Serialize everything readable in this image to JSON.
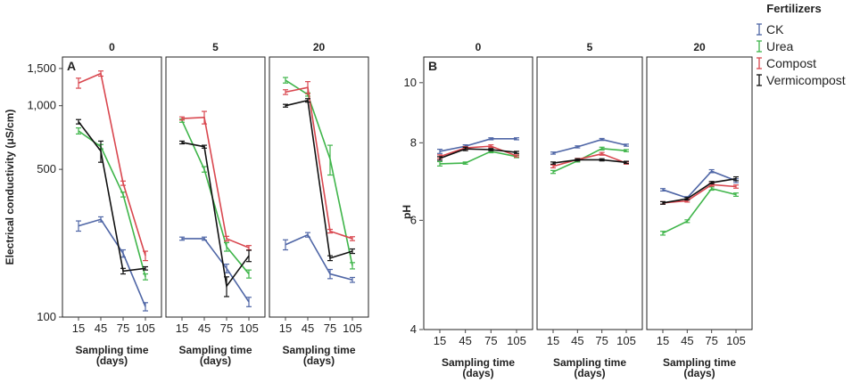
{
  "chart_data": [
    {
      "type": "line",
      "panel_label": "A",
      "ylabel": "Electrical conductivity (μS/cm)",
      "xlabel_line1": "Sampling time",
      "xlabel_line2": "(days)",
      "yscale": "log",
      "ylim": [
        100,
        1700
      ],
      "yticks": [
        100,
        500,
        1000,
        1500
      ],
      "ytick_labels": [
        "100",
        "500",
        "1,000",
        "1,500"
      ],
      "x": [
        15,
        45,
        75,
        105
      ],
      "xtick_labels": [
        "15",
        "45",
        "75",
        "105"
      ],
      "facets": [
        {
          "label": "0",
          "series": [
            {
              "name": "CK",
              "values": [
                270,
                290,
                200,
                112
              ],
              "errors": [
                15,
                8,
                8,
                5
              ]
            },
            {
              "name": "Urea",
              "values": [
                760,
                640,
                380,
                155
              ],
              "errors": [
                25,
                15,
                10,
                5
              ]
            },
            {
              "name": "Compost",
              "values": [
                1280,
                1420,
                430,
                195
              ],
              "errors": [
                70,
                40,
                10,
                10
              ]
            },
            {
              "name": "Vermicompost",
              "values": [
                840,
                610,
                165,
                170
              ],
              "errors": [
                20,
                70,
                5,
                3
              ]
            }
          ]
        },
        {
          "label": "5",
          "series": [
            {
              "name": "CK",
              "values": [
                235,
                235,
                170,
                118
              ],
              "errors": [
                4,
                4,
                8,
                6
              ]
            },
            {
              "name": "Urea",
              "values": [
                850,
                500,
                215,
                160
              ],
              "errors": [
                15,
                15,
                10,
                7
              ]
            },
            {
              "name": "Compost",
              "values": [
                870,
                880,
                235,
                213
              ],
              "errors": [
                15,
                60,
                6,
                5
              ]
            },
            {
              "name": "Vermicompost",
              "values": [
                670,
                640,
                140,
                195
              ],
              "errors": [
                10,
                10,
                15,
                12
              ]
            }
          ]
        },
        {
          "label": "20",
          "series": [
            {
              "name": "CK",
              "values": [
                220,
                245,
                160,
                150
              ],
              "errors": [
                12,
                6,
                8,
                4
              ]
            },
            {
              "name": "Urea",
              "values": [
                1320,
                1130,
                560,
                175
              ],
              "errors": [
                40,
                20,
                90,
                6
              ]
            },
            {
              "name": "Compost",
              "values": [
                1160,
                1220,
                255,
                235
              ],
              "errors": [
                30,
                80,
                5,
                5
              ]
            },
            {
              "name": "Vermicompost",
              "values": [
                1000,
                1060,
                190,
                205
              ],
              "errors": [
                15,
                20,
                5,
                5
              ]
            }
          ]
        }
      ]
    },
    {
      "type": "line",
      "panel_label": "B",
      "ylabel": "pH",
      "xlabel_line1": "Sampling time",
      "xlabel_line2": "(days)",
      "yscale": "log",
      "ylim": [
        4,
        11
      ],
      "yticks": [
        4,
        6,
        8,
        10
      ],
      "ytick_labels": [
        "4",
        "6",
        "8",
        "10"
      ],
      "x": [
        15,
        45,
        75,
        105
      ],
      "xtick_labels": [
        "15",
        "45",
        "75",
        "105"
      ],
      "facets": [
        {
          "label": "0",
          "series": [
            {
              "name": "CK",
              "values": [
                7.75,
                7.9,
                8.12,
                8.12
              ],
              "errors": [
                0.06,
                0.04,
                0.03,
                0.03
              ]
            },
            {
              "name": "Urea",
              "values": [
                7.4,
                7.42,
                7.75,
                7.6
              ],
              "errors": [
                0.06,
                0.03,
                0.04,
                0.03
              ]
            },
            {
              "name": "Compost",
              "values": [
                7.6,
                7.85,
                7.9,
                7.62
              ],
              "errors": [
                0.05,
                0.04,
                0.04,
                0.03
              ]
            },
            {
              "name": "Vermicompost",
              "values": [
                7.55,
                7.82,
                7.8,
                7.72
              ],
              "errors": [
                0.05,
                0.05,
                0.03,
                0.03
              ]
            }
          ]
        },
        {
          "label": "5",
          "series": [
            {
              "name": "CK",
              "values": [
                7.7,
                7.88,
                8.1,
                7.93
              ],
              "errors": [
                0.03,
                0.03,
                0.03,
                0.03
              ]
            },
            {
              "name": "Urea",
              "values": [
                7.18,
                7.48,
                7.83,
                7.77
              ],
              "errors": [
                0.04,
                0.03,
                0.04,
                0.03
              ]
            },
            {
              "name": "Compost",
              "values": [
                7.33,
                7.52,
                7.68,
                7.42
              ],
              "errors": [
                0.04,
                0.03,
                0.04,
                0.03
              ]
            },
            {
              "name": "Vermicompost",
              "values": [
                7.42,
                7.51,
                7.51,
                7.44
              ],
              "errors": [
                0.03,
                0.03,
                0.03,
                0.03
              ]
            }
          ]
        },
        {
          "label": "20",
          "series": [
            {
              "name": "CK",
              "values": [
                6.72,
                6.52,
                7.2,
                6.95
              ],
              "errors": [
                0.03,
                0.03,
                0.04,
                0.05
              ]
            },
            {
              "name": "Urea",
              "values": [
                5.72,
                5.98,
                6.75,
                6.6
              ],
              "errors": [
                0.04,
                0.03,
                0.04,
                0.04
              ]
            },
            {
              "name": "Compost",
              "values": [
                6.4,
                6.45,
                6.85,
                6.8
              ],
              "errors": [
                0.03,
                0.03,
                0.04,
                0.04
              ]
            },
            {
              "name": "Vermicompost",
              "values": [
                6.4,
                6.5,
                6.9,
                7.0
              ],
              "errors": [
                0.03,
                0.03,
                0.03,
                0.05
              ]
            }
          ]
        }
      ]
    }
  ],
  "legend": {
    "title": "Fertilizers",
    "items": [
      {
        "name": "CK",
        "color": "#4f66a6"
      },
      {
        "name": "Urea",
        "color": "#3fb54a"
      },
      {
        "name": "Compost",
        "color": "#d9474f"
      },
      {
        "name": "Vermicompost",
        "color": "#111111"
      }
    ]
  }
}
